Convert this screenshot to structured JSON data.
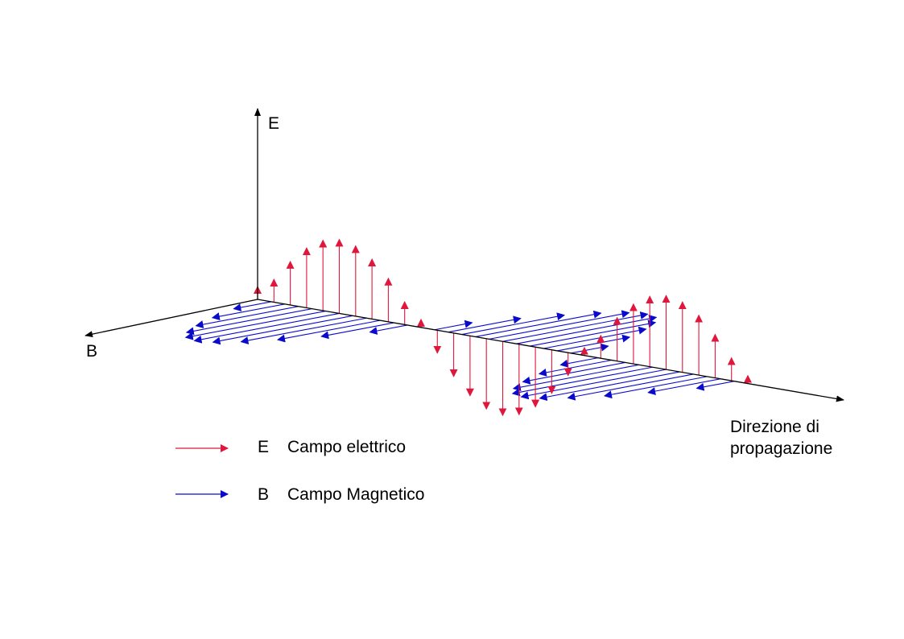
{
  "axes": {
    "e_label": "E",
    "b_label": "B",
    "propagation_label": [
      "Direzione di",
      "propagazione"
    ]
  },
  "legend": [
    {
      "symbol": "E",
      "label": "Campo elettrico"
    },
    {
      "symbol": "B",
      "label": "Campo Magnetico"
    }
  ]
}
